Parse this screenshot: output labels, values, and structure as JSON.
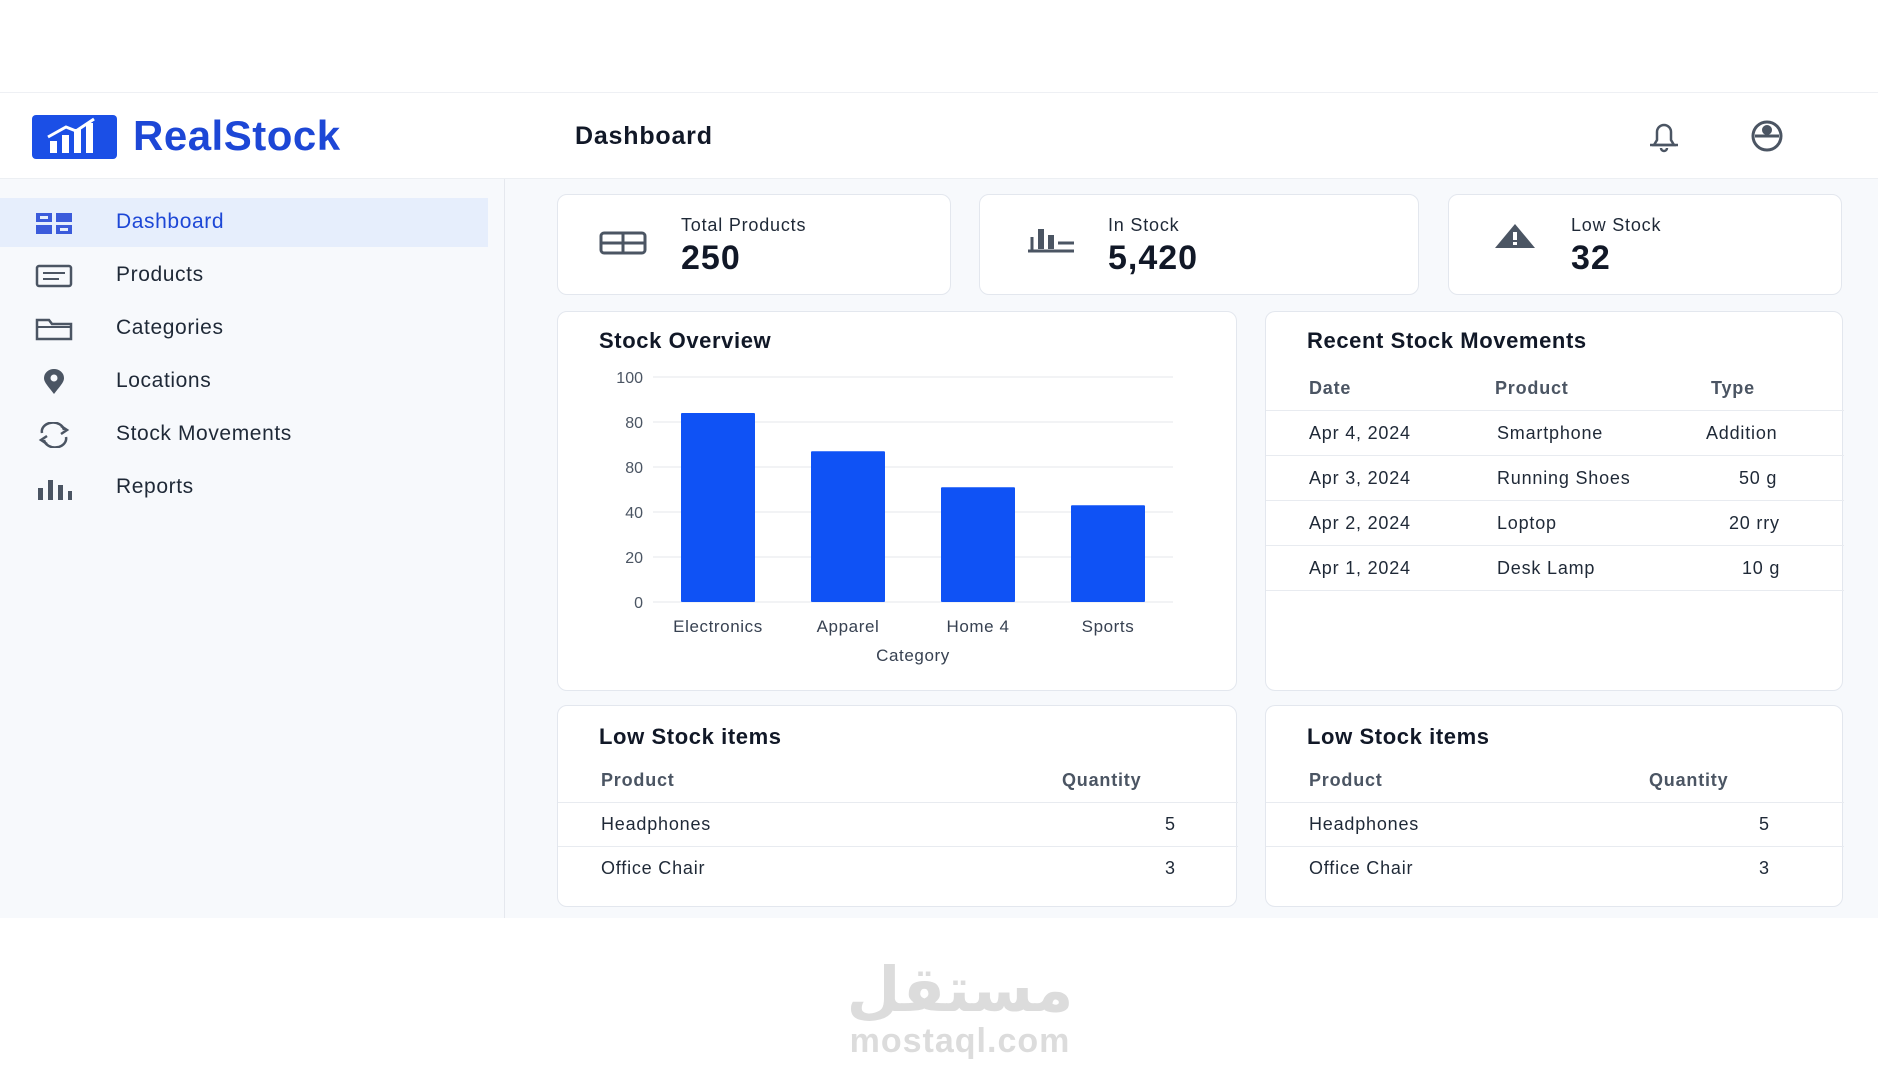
{
  "brand": {
    "name": "RealStock",
    "logo_icon": "bar-chart-logo-icon",
    "accent": "#1d47d6"
  },
  "nav": {
    "items": [
      {
        "label": "Dashboard",
        "icon": "grid-icon",
        "active": true
      },
      {
        "label": "Products",
        "icon": "box-list-icon"
      },
      {
        "label": "Categories",
        "icon": "folder-icon"
      },
      {
        "label": "Locations",
        "icon": "pin-icon"
      },
      {
        "label": "Stock Movements",
        "icon": "transfer-icon"
      },
      {
        "label": "Reports",
        "icon": "bar-chart-icon"
      }
    ]
  },
  "header": {
    "title": "Dashboard",
    "bell_icon": "bell-icon",
    "user_icon": "user-avatar-icon"
  },
  "stats": [
    {
      "label": "Total Products",
      "value": "250",
      "icon": "table-icon"
    },
    {
      "label": "In Stock",
      "value": "5,420",
      "icon": "factory-icon"
    },
    {
      "label": "Low Stock",
      "value": "32",
      "icon": "warning-icon"
    }
  ],
  "overview": {
    "title": "Stock Overview",
    "y_ticks": [
      "100",
      "80",
      "80",
      "40",
      "20",
      "0"
    ],
    "x_axis_label": "Category"
  },
  "chart_data": {
    "type": "bar",
    "title": "Stock Overview",
    "categories": [
      "Electronics",
      "Apparel",
      "Home 4",
      "Sports"
    ],
    "values": [
      84,
      67,
      51,
      43
    ],
    "xlabel": "Category",
    "ylabel": "",
    "ylim": [
      0,
      100
    ],
    "grid": true,
    "bar_color": "#0f52f5"
  },
  "movements": {
    "title": "Recent Stock Movements",
    "columns": [
      "Date",
      "Product",
      "Type"
    ],
    "rows": [
      [
        "Apr 4, 2024",
        "Smartphone",
        "Addition"
      ],
      [
        "Apr 3, 2024",
        "Running Shoes",
        "50 g"
      ],
      [
        "Apr 2, 2024",
        "Loptop",
        "20 rry"
      ],
      [
        "Apr 1, 2024",
        "Desk Lamp",
        "10 g"
      ]
    ]
  },
  "low_stock_left": {
    "title": "Low Stock items",
    "columns": [
      "Product",
      "Quantity"
    ],
    "rows": [
      [
        "Headphones",
        "5"
      ],
      [
        "Office Chair",
        "3"
      ]
    ]
  },
  "low_stock_right": {
    "title": "Low Stock items",
    "columns": [
      "Product",
      "Quantity"
    ],
    "rows": [
      [
        "Headphones",
        "5"
      ],
      [
        "Office Chair",
        "3"
      ]
    ]
  },
  "watermark": {
    "arabic": "مستقل",
    "latin": "mostaql.com"
  }
}
